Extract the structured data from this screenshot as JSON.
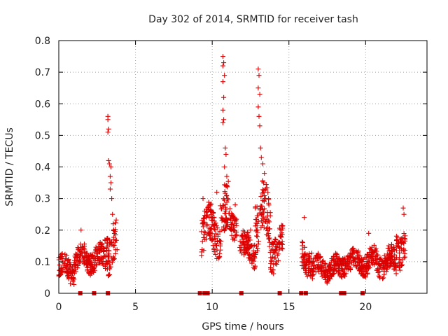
{
  "chart_data": {
    "type": "scatter",
    "title": "Day 302 of 2014, SRMTID for receiver tash",
    "xlabel": "GPS time / hours",
    "ylabel": "SRMTID / TECUs",
    "xlim": [
      0,
      24
    ],
    "ylim": [
      0,
      0.8
    ],
    "x_ticks": [
      0,
      5,
      10,
      15,
      20
    ],
    "x_tick_labels": [
      "0",
      "5",
      "10",
      "15",
      "20"
    ],
    "y_ticks": [
      0,
      0.1,
      0.2,
      0.3,
      0.4,
      0.5,
      0.6,
      0.7,
      0.8
    ],
    "y_tick_labels": [
      "0",
      "0.1",
      "0.2",
      "0.3",
      "0.4",
      "0.5",
      "0.6",
      "0.7",
      "0.8"
    ],
    "grid": true,
    "marker": "+",
    "color": "#dd0000",
    "series": [
      {
        "name": "SRMTID",
        "segments": [
          {
            "start": 0.0,
            "end": 1.0,
            "baseline": 0.08,
            "spread": 0.035
          },
          {
            "start": 1.0,
            "end": 3.0,
            "baseline": 0.11,
            "spread": 0.035
          },
          {
            "start": 3.0,
            "end": 3.8,
            "baseline": 0.15,
            "spread": 0.06
          },
          {
            "start": 9.3,
            "end": 10.5,
            "baseline": 0.2,
            "spread": 0.06
          },
          {
            "start": 10.5,
            "end": 11.1,
            "baseline": 0.24,
            "spread": 0.08
          },
          {
            "start": 11.1,
            "end": 11.6,
            "baseline": 0.22,
            "spread": 0.04
          },
          {
            "start": 11.8,
            "end": 12.8,
            "baseline": 0.14,
            "spread": 0.04
          },
          {
            "start": 12.8,
            "end": 13.8,
            "baseline": 0.24,
            "spread": 0.08
          },
          {
            "start": 13.8,
            "end": 14.6,
            "baseline": 0.14,
            "spread": 0.05
          },
          {
            "start": 15.8,
            "end": 16.5,
            "baseline": 0.11,
            "spread": 0.04
          },
          {
            "start": 16.5,
            "end": 18.5,
            "baseline": 0.08,
            "spread": 0.03
          },
          {
            "start": 18.5,
            "end": 20.0,
            "baseline": 0.1,
            "spread": 0.03
          },
          {
            "start": 20.0,
            "end": 22.0,
            "baseline": 0.1,
            "spread": 0.035
          },
          {
            "start": 22.0,
            "end": 22.6,
            "baseline": 0.15,
            "spread": 0.05
          }
        ],
        "peaks": [
          [
            3.2,
            0.56
          ],
          [
            3.2,
            0.55
          ],
          [
            3.25,
            0.52
          ],
          [
            3.2,
            0.51
          ],
          [
            3.25,
            0.42
          ],
          [
            3.3,
            0.41
          ],
          [
            3.4,
            0.4
          ],
          [
            3.35,
            0.37
          ],
          [
            3.4,
            0.35
          ],
          [
            3.35,
            0.33
          ],
          [
            3.45,
            0.3
          ],
          [
            3.5,
            0.25
          ],
          [
            3.55,
            0.22
          ],
          [
            10.7,
            0.75
          ],
          [
            10.75,
            0.73
          ],
          [
            10.7,
            0.72
          ],
          [
            10.8,
            0.69
          ],
          [
            10.7,
            0.67
          ],
          [
            10.75,
            0.62
          ],
          [
            10.7,
            0.58
          ],
          [
            10.75,
            0.55
          ],
          [
            10.7,
            0.54
          ],
          [
            10.85,
            0.46
          ],
          [
            10.9,
            0.44
          ],
          [
            10.8,
            0.4
          ],
          [
            10.95,
            0.37
          ],
          [
            10.9,
            0.34
          ],
          [
            11.0,
            0.3
          ],
          [
            13.0,
            0.71
          ],
          [
            13.05,
            0.69
          ],
          [
            13.0,
            0.65
          ],
          [
            13.1,
            0.63
          ],
          [
            13.0,
            0.59
          ],
          [
            13.05,
            0.56
          ],
          [
            13.1,
            0.53
          ],
          [
            13.15,
            0.46
          ],
          [
            13.2,
            0.43
          ],
          [
            13.3,
            0.41
          ],
          [
            13.4,
            0.38
          ],
          [
            13.35,
            0.35
          ],
          [
            13.5,
            0.33
          ],
          [
            13.45,
            0.3
          ],
          [
            9.4,
            0.3
          ],
          [
            10.3,
            0.32
          ],
          [
            11.5,
            0.28
          ],
          [
            12.5,
            0.2
          ],
          [
            22.45,
            0.27
          ],
          [
            22.5,
            0.25
          ],
          [
            16.0,
            0.24
          ],
          [
            20.2,
            0.19
          ],
          [
            1.45,
            0.2
          ]
        ],
        "zero_markers": [
          1.4,
          2.3,
          3.2,
          9.2,
          9.5,
          9.7,
          11.9,
          14.4,
          15.8,
          16.1,
          18.4,
          18.6,
          19.8
        ]
      }
    ]
  }
}
